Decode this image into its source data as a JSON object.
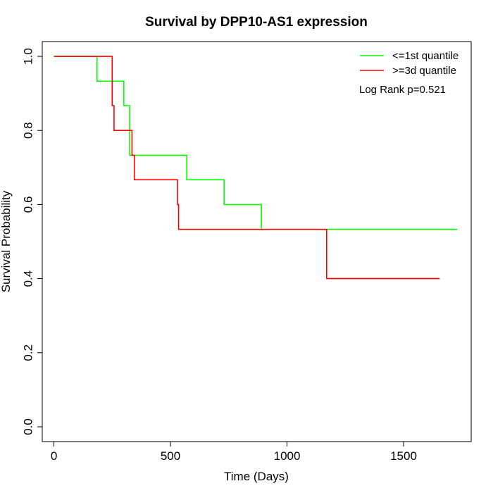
{
  "chart_data": {
    "type": "line",
    "title": "Survival by DPP10-AS1 expression",
    "xlabel": "Time (Days)",
    "ylabel": "Survival Probability",
    "xlim": [
      -50,
      1790
    ],
    "ylim": [
      -0.04,
      1.04
    ],
    "x_ticks": [
      0,
      500,
      1000,
      1500
    ],
    "x_tick_labels": [
      "0",
      "500",
      "1000",
      "1500"
    ],
    "y_ticks": [
      0.0,
      0.2,
      0.4,
      0.6,
      0.8,
      1.0
    ],
    "y_tick_labels": [
      "0.0",
      "0.2",
      "0.4",
      "0.6",
      "0.8",
      "1.0"
    ],
    "grid": false,
    "legend_position": "top-right",
    "annotation": "Log Rank p=0.521",
    "series": [
      {
        "name": "<=1st quantile",
        "color": "#00ff00",
        "points": [
          [
            0,
            1.0
          ],
          [
            185,
            1.0
          ],
          [
            185,
            0.933
          ],
          [
            300,
            0.933
          ],
          [
            300,
            0.867
          ],
          [
            325,
            0.867
          ],
          [
            325,
            0.733
          ],
          [
            570,
            0.733
          ],
          [
            570,
            0.667
          ],
          [
            730,
            0.667
          ],
          [
            730,
            0.6
          ],
          [
            890,
            0.6
          ],
          [
            890,
            0.533
          ],
          [
            1730,
            0.533
          ]
        ]
      },
      {
        "name": ">=3d quantile",
        "color": "#ff0000",
        "points": [
          [
            0,
            1.0
          ],
          [
            250,
            1.0
          ],
          [
            250,
            0.867
          ],
          [
            258,
            0.867
          ],
          [
            258,
            0.8
          ],
          [
            335,
            0.8
          ],
          [
            335,
            0.733
          ],
          [
            345,
            0.733
          ],
          [
            345,
            0.667
          ],
          [
            530,
            0.667
          ],
          [
            530,
            0.6
          ],
          [
            535,
            0.6
          ],
          [
            535,
            0.533
          ],
          [
            1170,
            0.533
          ],
          [
            1170,
            0.4
          ],
          [
            1655,
            0.4
          ]
        ]
      }
    ]
  }
}
